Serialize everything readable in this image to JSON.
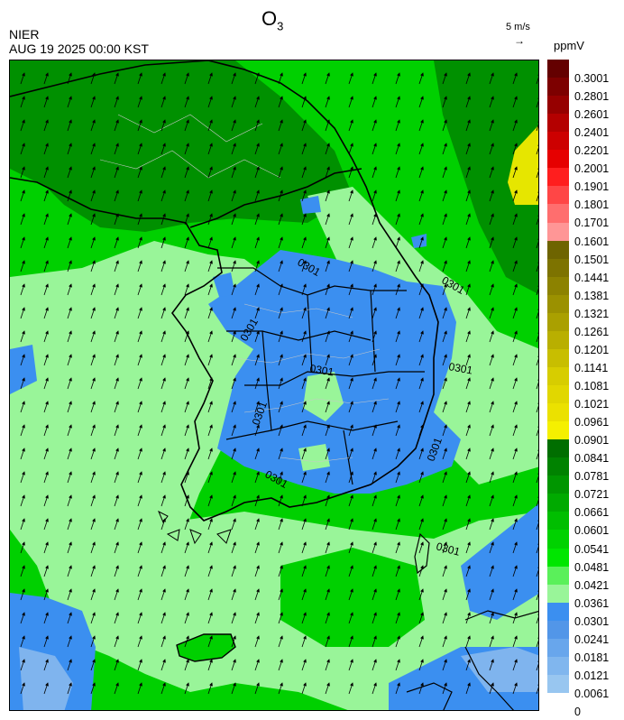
{
  "header": {
    "organization": "NIER",
    "timestamp": "AUG 19 2025 00:00 KST",
    "title_main": "O",
    "title_sub": "3",
    "wind_scale": "5 m/s",
    "wind_arrow": "→",
    "units": "ppmV"
  },
  "map": {
    "contour_label": "0301",
    "wind_direction": "north-northeast",
    "colors": {
      "dark_green": "#009000",
      "green": "#00d000",
      "light_green": "#99f599",
      "blue": "#3b8ff0",
      "light_blue": "#7fb4ee",
      "yellow": "#e6e600",
      "coast": "#000000",
      "province": "#c8c8c8"
    }
  },
  "legend": {
    "labels": [
      "0.3001",
      "0.2801",
      "0.2601",
      "0.2401",
      "0.2201",
      "0.2001",
      "0.1901",
      "0.1801",
      "0.1701",
      "0.1601",
      "0.1501",
      "0.1441",
      "0.1381",
      "0.1321",
      "0.1261",
      "0.1201",
      "0.1141",
      "0.1081",
      "0.1021",
      "0.0961",
      "0.0901",
      "0.0841",
      "0.0781",
      "0.0721",
      "0.0661",
      "0.0601",
      "0.0541",
      "0.0481",
      "0.0421",
      "0.0361",
      "0.0301",
      "0.0241",
      "0.0181",
      "0.0121",
      "0.0061",
      "0"
    ],
    "colors": [
      "#640000",
      "#7d0000",
      "#960000",
      "#b40000",
      "#cd0000",
      "#e60000",
      "#ff1e1e",
      "#ff4646",
      "#ff6e6e",
      "#ff9696",
      "#6e6400",
      "#7d7300",
      "#8c8200",
      "#9b9100",
      "#aaa000",
      "#b9af00",
      "#c8be00",
      "#d7cd00",
      "#e1d700",
      "#ebe100",
      "#f5f000",
      "#006e00",
      "#008200",
      "#009600",
      "#00aa00",
      "#00be00",
      "#00d200",
      "#00e600",
      "#5af05a",
      "#99f599",
      "#3b8ff0",
      "#5296e8",
      "#68a6ec",
      "#80b6ee",
      "#98c6f0"
    ]
  }
}
